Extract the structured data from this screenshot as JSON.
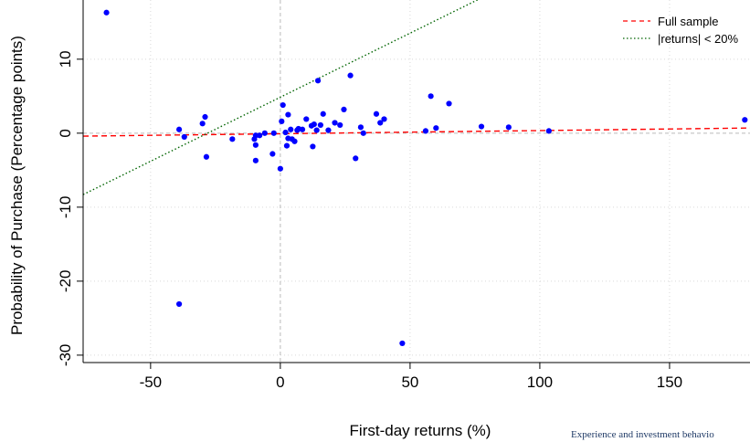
{
  "chart_data": {
    "type": "scatter",
    "title": "",
    "xlabel": "First-day returns (%)",
    "ylabel": "Probability of Purchase (Percentage points)",
    "xlim": [
      -76,
      181
    ],
    "ylim": [
      -31,
      18
    ],
    "x_ticks": [
      -50,
      0,
      50,
      100,
      150
    ],
    "y_ticks": [
      -30,
      -20,
      -10,
      0,
      10
    ],
    "grid": true,
    "grid_style": "dotted",
    "reference_lines": {
      "x": 0,
      "y": 0,
      "style": "dashed",
      "color": "#bbbbbb"
    },
    "legend_position": "top-right",
    "series": [
      {
        "kind": "points",
        "color": "#0000ff",
        "points": [
          {
            "x": -67,
            "y": 16.3
          },
          {
            "x": -39,
            "y": 0.5
          },
          {
            "x": -37,
            "y": -0.5
          },
          {
            "x": -39,
            "y": -23.1
          },
          {
            "x": -30,
            "y": 1.3
          },
          {
            "x": -29,
            "y": 2.2
          },
          {
            "x": -28.5,
            "y": -3.2
          },
          {
            "x": -18.5,
            "y": -0.8
          },
          {
            "x": -10,
            "y": -0.8
          },
          {
            "x": -9.5,
            "y": -0.3
          },
          {
            "x": -9.5,
            "y": -1.6
          },
          {
            "x": -9.5,
            "y": -3.7
          },
          {
            "x": -8,
            "y": -0.3
          },
          {
            "x": -6,
            "y": 0.0
          },
          {
            "x": -3,
            "y": -2.8
          },
          {
            "x": -2.5,
            "y": 0.0
          },
          {
            "x": 0,
            "y": -4.8
          },
          {
            "x": 0.5,
            "y": 1.6
          },
          {
            "x": 1,
            "y": 3.8
          },
          {
            "x": 2,
            "y": 0.1
          },
          {
            "x": 2.5,
            "y": -1.7
          },
          {
            "x": 3,
            "y": -0.7
          },
          {
            "x": 3,
            "y": 2.5
          },
          {
            "x": 4,
            "y": 0.5
          },
          {
            "x": 4.5,
            "y": -0.8
          },
          {
            "x": 5.5,
            "y": -1.1
          },
          {
            "x": 6.5,
            "y": 0.4
          },
          {
            "x": 7,
            "y": 0.6
          },
          {
            "x": 8.5,
            "y": 0.5
          },
          {
            "x": 10,
            "y": 1.9
          },
          {
            "x": 12,
            "y": 1.0
          },
          {
            "x": 12.5,
            "y": -1.8
          },
          {
            "x": 13,
            "y": 1.2
          },
          {
            "x": 14,
            "y": 0.4
          },
          {
            "x": 14.5,
            "y": 7.1
          },
          {
            "x": 15.5,
            "y": 1.1
          },
          {
            "x": 16.5,
            "y": 2.6
          },
          {
            "x": 18.5,
            "y": 0.4
          },
          {
            "x": 21,
            "y": 1.4
          },
          {
            "x": 23,
            "y": 1.1
          },
          {
            "x": 24.5,
            "y": 3.2
          },
          {
            "x": 27,
            "y": 7.8
          },
          {
            "x": 29,
            "y": -3.4
          },
          {
            "x": 31,
            "y": 0.8
          },
          {
            "x": 32,
            "y": 0.0
          },
          {
            "x": 37,
            "y": 2.6
          },
          {
            "x": 38.5,
            "y": 1.4
          },
          {
            "x": 40,
            "y": 1.9
          },
          {
            "x": 47,
            "y": -28.4
          },
          {
            "x": 56,
            "y": 0.3
          },
          {
            "x": 58,
            "y": 5.0
          },
          {
            "x": 60,
            "y": 0.7
          },
          {
            "x": 65,
            "y": 4.0
          },
          {
            "x": 77.5,
            "y": 0.9
          },
          {
            "x": 88,
            "y": 0.8
          },
          {
            "x": 103.5,
            "y": 0.3
          },
          {
            "x": 179,
            "y": 1.8
          }
        ]
      },
      {
        "kind": "line",
        "name": "Full sample",
        "color": "#ff0000",
        "style": "dashed",
        "x": [
          -76,
          181
        ],
        "y": [
          -0.4,
          0.7
        ]
      },
      {
        "kind": "line",
        "name": "|returns| < 20%",
        "color": "#006400",
        "style": "dotted",
        "x": [
          -76,
          181
        ],
        "y": [
          -8.3,
          36.2
        ]
      }
    ]
  },
  "footer_text": "Experience and investment behavio"
}
